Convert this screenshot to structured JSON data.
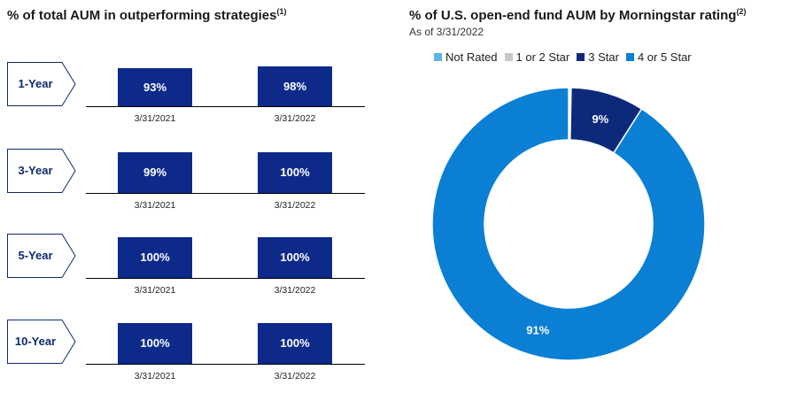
{
  "left": {
    "title": "% of total AUM in outperforming strategies",
    "title_note": "(1)",
    "rows": [
      {
        "period": "1-Year",
        "bars": [
          {
            "value": 93,
            "label": "93%",
            "date": "3/31/2021"
          },
          {
            "value": 98,
            "label": "98%",
            "date": "3/31/2022"
          }
        ]
      },
      {
        "period": "3-Year",
        "bars": [
          {
            "value": 99,
            "label": "99%",
            "date": "3/31/2021"
          },
          {
            "value": 100,
            "label": "100%",
            "date": "3/31/2022"
          }
        ]
      },
      {
        "period": "5-Year",
        "bars": [
          {
            "value": 100,
            "label": "100%",
            "date": "3/31/2021"
          },
          {
            "value": 100,
            "label": "100%",
            "date": "3/31/2022"
          }
        ]
      },
      {
        "period": "10-Year",
        "bars": [
          {
            "value": 100,
            "label": "100%",
            "date": "3/31/2021"
          },
          {
            "value": 100,
            "label": "100%",
            "date": "3/31/2022"
          }
        ]
      }
    ]
  },
  "right": {
    "title": "% of U.S. open-end fund AUM by Morningstar rating",
    "title_note": "(2)",
    "subtitle": "As of 3/31/2022"
  },
  "chart_data": [
    {
      "type": "bar",
      "title": "% of total AUM in outperforming strategies",
      "categories": [
        "1-Year",
        "3-Year",
        "5-Year",
        "10-Year"
      ],
      "series": [
        {
          "name": "3/31/2021",
          "values": [
            93,
            99,
            100,
            100
          ]
        },
        {
          "name": "3/31/2022",
          "values": [
            98,
            100,
            100,
            100
          ]
        }
      ],
      "unit": "%"
    },
    {
      "type": "pie",
      "style": "donut",
      "title": "% of U.S. open-end fund AUM by Morningstar rating",
      "subtitle": "As of 3/31/2022",
      "legend_position": "top",
      "slices": [
        {
          "name": "Not Rated",
          "value": 0.2,
          "label": "",
          "color": "#5bb6e6"
        },
        {
          "name": "1 or 2 Star",
          "value": 0.1,
          "label": "",
          "color": "#c8c8c8"
        },
        {
          "name": "3 Star",
          "value": 8.7,
          "label": "9%",
          "color": "#0d2a7a",
          "label_color": "#ffffff"
        },
        {
          "name": "4 or 5 Star",
          "value": 91.0,
          "label": "91%",
          "color": "#0a7fd4",
          "label_color": "#ffffff"
        }
      ]
    }
  ],
  "colors": {
    "bar": "#0d2a8a",
    "chevron_text": "#0d2a6e"
  }
}
